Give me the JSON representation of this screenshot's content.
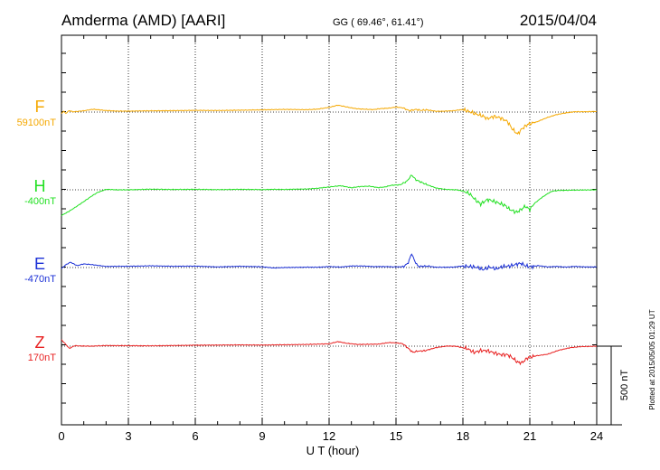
{
  "header": {
    "station": "Amderma (AMD)  [AARI]",
    "coords": "GG ( 69.46°,  61.41°)",
    "date": "2015/04/04"
  },
  "footer": {
    "plotted": "Plotted at 2015/05/05 01:29 UT"
  },
  "chart_data": {
    "type": "line",
    "xlabel": "U T (hour)",
    "xlim": [
      0,
      24
    ],
    "xticks": [
      "0",
      "3",
      "6",
      "9",
      "12",
      "15",
      "18",
      "21",
      "24"
    ],
    "scale_bar_label": "500 nT",
    "scale_bar_nT": 500,
    "grid": "dotted",
    "series": [
      {
        "name": "F",
        "baseline_label": "59100nT",
        "color": "#f5a800",
        "points": [
          [
            0,
            9
          ],
          [
            0.1,
            -5
          ],
          [
            0.2,
            8
          ],
          [
            0.35,
            -10
          ],
          [
            0.5,
            -2
          ],
          [
            0.7,
            -4
          ],
          [
            1,
            -8
          ],
          [
            1.4,
            -18
          ],
          [
            2,
            -10
          ],
          [
            2.5,
            -6
          ],
          [
            3,
            -6
          ],
          [
            4,
            -8
          ],
          [
            5,
            -9
          ],
          [
            6,
            -11
          ],
          [
            7,
            -10
          ],
          [
            8,
            -12
          ],
          [
            9,
            -14
          ],
          [
            10,
            -17
          ],
          [
            11,
            -15
          ],
          [
            11.5,
            -19
          ],
          [
            12,
            -30
          ],
          [
            12.4,
            -44
          ],
          [
            12.8,
            -32
          ],
          [
            13.2,
            -22
          ],
          [
            13.6,
            -18
          ],
          [
            14,
            -16
          ],
          [
            14.3,
            -22
          ],
          [
            14.7,
            -25
          ],
          [
            15,
            -32
          ],
          [
            15.3,
            -27
          ],
          [
            15.6,
            -9
          ],
          [
            15.9,
            -17
          ],
          [
            16.1,
            -11
          ],
          [
            16.4,
            -14
          ],
          [
            16.8,
            -5
          ],
          [
            17,
            -5
          ],
          [
            17.5,
            -8
          ],
          [
            18,
            -16
          ],
          [
            18.3,
            -2
          ],
          [
            18.6,
            13
          ],
          [
            18.9,
            26
          ],
          [
            19.1,
            42
          ],
          [
            19.4,
            27
          ],
          [
            19.7,
            38
          ],
          [
            20,
            60
          ],
          [
            20.2,
            105
          ],
          [
            20.45,
            140
          ],
          [
            20.65,
            106
          ],
          [
            20.9,
            79
          ],
          [
            21.3,
            63
          ],
          [
            21.8,
            34
          ],
          [
            22.2,
            16
          ],
          [
            22.5,
            8
          ],
          [
            23,
            -2
          ],
          [
            23.5,
            -2
          ],
          [
            24,
            -4
          ]
        ]
      },
      {
        "name": "H",
        "baseline_label": "-400nT",
        "color": "#22e022",
        "points": [
          [
            0,
            163
          ],
          [
            0.3,
            140
          ],
          [
            0.6,
            113
          ],
          [
            1,
            75
          ],
          [
            1.3,
            45
          ],
          [
            1.6,
            18
          ],
          [
            2,
            -3
          ],
          [
            2.5,
            0
          ],
          [
            3,
            0
          ],
          [
            4,
            -4
          ],
          [
            5,
            -2
          ],
          [
            6,
            -3
          ],
          [
            7,
            -1
          ],
          [
            8,
            -3
          ],
          [
            9,
            -1
          ],
          [
            9.5,
            -3
          ],
          [
            10,
            -2
          ],
          [
            10.5,
            -4
          ],
          [
            11,
            -5
          ],
          [
            11.5,
            -10
          ],
          [
            12,
            -18
          ],
          [
            12.5,
            -26
          ],
          [
            13,
            -13
          ],
          [
            13.4,
            -21
          ],
          [
            13.8,
            -23
          ],
          [
            14.2,
            -14
          ],
          [
            14.5,
            -18
          ],
          [
            14.8,
            -29
          ],
          [
            15.2,
            -32
          ],
          [
            15.5,
            -56
          ],
          [
            15.7,
            -94
          ],
          [
            15.9,
            -63
          ],
          [
            16.3,
            -38
          ],
          [
            16.8,
            -11
          ],
          [
            17.3,
            -2
          ],
          [
            17.7,
            0
          ],
          [
            18,
            8
          ],
          [
            18.3,
            25
          ],
          [
            18.6,
            70
          ],
          [
            18.8,
            90
          ],
          [
            19.1,
            62
          ],
          [
            19.3,
            69
          ],
          [
            19.6,
            84
          ],
          [
            19.9,
            100
          ],
          [
            20.1,
            125
          ],
          [
            20.4,
            143
          ],
          [
            20.6,
            126
          ],
          [
            20.8,
            105
          ],
          [
            21,
            125
          ],
          [
            21.2,
            88
          ],
          [
            21.5,
            53
          ],
          [
            21.8,
            24
          ],
          [
            22,
            9
          ],
          [
            22.3,
            4
          ],
          [
            23,
            2
          ],
          [
            24,
            0
          ]
        ]
      },
      {
        "name": "E",
        "baseline_label": "-470nT",
        "color": "#1a2fd6",
        "points": [
          [
            0,
            6
          ],
          [
            0.2,
            -18
          ],
          [
            0.4,
            -34
          ],
          [
            0.7,
            -12
          ],
          [
            1,
            -23
          ],
          [
            1.4,
            -18
          ],
          [
            2,
            -7
          ],
          [
            2.5,
            -8
          ],
          [
            3,
            -8
          ],
          [
            4,
            -11
          ],
          [
            5,
            -8
          ],
          [
            6,
            -9
          ],
          [
            7,
            -4
          ],
          [
            8,
            -8
          ],
          [
            9,
            -5
          ],
          [
            9.5,
            3
          ],
          [
            10,
            0
          ],
          [
            11,
            -2
          ],
          [
            11.5,
            -2
          ],
          [
            12,
            -6
          ],
          [
            12.5,
            -3
          ],
          [
            13,
            -10
          ],
          [
            13.5,
            -10
          ],
          [
            14,
            -6
          ],
          [
            14.5,
            -6
          ],
          [
            15,
            -4
          ],
          [
            15.35,
            -6
          ],
          [
            15.55,
            -31
          ],
          [
            15.7,
            -89
          ],
          [
            15.85,
            -38
          ],
          [
            16,
            -7
          ],
          [
            16.4,
            -9
          ],
          [
            16.8,
            -2
          ],
          [
            17.2,
            -2
          ],
          [
            17.6,
            -3
          ],
          [
            18,
            -10
          ],
          [
            18.3,
            -6
          ],
          [
            18.6,
            -2
          ],
          [
            18.9,
            13
          ],
          [
            19.2,
            -2
          ],
          [
            19.5,
            9
          ],
          [
            19.8,
            -7
          ],
          [
            20.1,
            -9
          ],
          [
            20.4,
            -21
          ],
          [
            20.6,
            -27
          ],
          [
            20.8,
            -12
          ],
          [
            21,
            -5
          ],
          [
            21.4,
            -12
          ],
          [
            21.8,
            -4
          ],
          [
            22.2,
            -7
          ],
          [
            22.6,
            -3
          ],
          [
            23,
            -7
          ],
          [
            23.5,
            -4
          ],
          [
            24,
            -4
          ]
        ]
      },
      {
        "name": "Z",
        "baseline_label": "170nT",
        "color": "#e82020",
        "points": [
          [
            0,
            -41
          ],
          [
            0.15,
            -18
          ],
          [
            0.35,
            14
          ],
          [
            0.6,
            -3
          ],
          [
            0.9,
            -1
          ],
          [
            1.3,
            0
          ],
          [
            2,
            -4
          ],
          [
            3,
            -3
          ],
          [
            4,
            -2
          ],
          [
            5,
            -4
          ],
          [
            6,
            -6
          ],
          [
            7,
            -7
          ],
          [
            8,
            -8
          ],
          [
            9,
            -7
          ],
          [
            10,
            -9
          ],
          [
            11,
            -11
          ],
          [
            11.5,
            -13
          ],
          [
            12,
            -15
          ],
          [
            12.4,
            -29
          ],
          [
            12.8,
            -18
          ],
          [
            13.3,
            -11
          ],
          [
            13.8,
            -12
          ],
          [
            14.2,
            -13
          ],
          [
            14.7,
            -23
          ],
          [
            15,
            -21
          ],
          [
            15.3,
            -16
          ],
          [
            15.55,
            14
          ],
          [
            15.75,
            39
          ],
          [
            15.95,
            32
          ],
          [
            16.3,
            29
          ],
          [
            16.8,
            9
          ],
          [
            17.3,
            -1
          ],
          [
            17.7,
            1
          ],
          [
            18,
            10
          ],
          [
            18.2,
            16
          ],
          [
            18.5,
            40
          ],
          [
            18.8,
            28
          ],
          [
            19.1,
            29
          ],
          [
            19.4,
            42
          ],
          [
            19.7,
            54
          ],
          [
            20,
            54
          ],
          [
            20.2,
            72
          ],
          [
            20.45,
            102
          ],
          [
            20.65,
            105
          ],
          [
            20.9,
            74
          ],
          [
            21.3,
            61
          ],
          [
            21.8,
            51
          ],
          [
            22.3,
            26
          ],
          [
            22.8,
            10
          ],
          [
            23.3,
            3
          ],
          [
            23.8,
            1
          ],
          [
            24,
            0
          ]
        ]
      }
    ]
  }
}
